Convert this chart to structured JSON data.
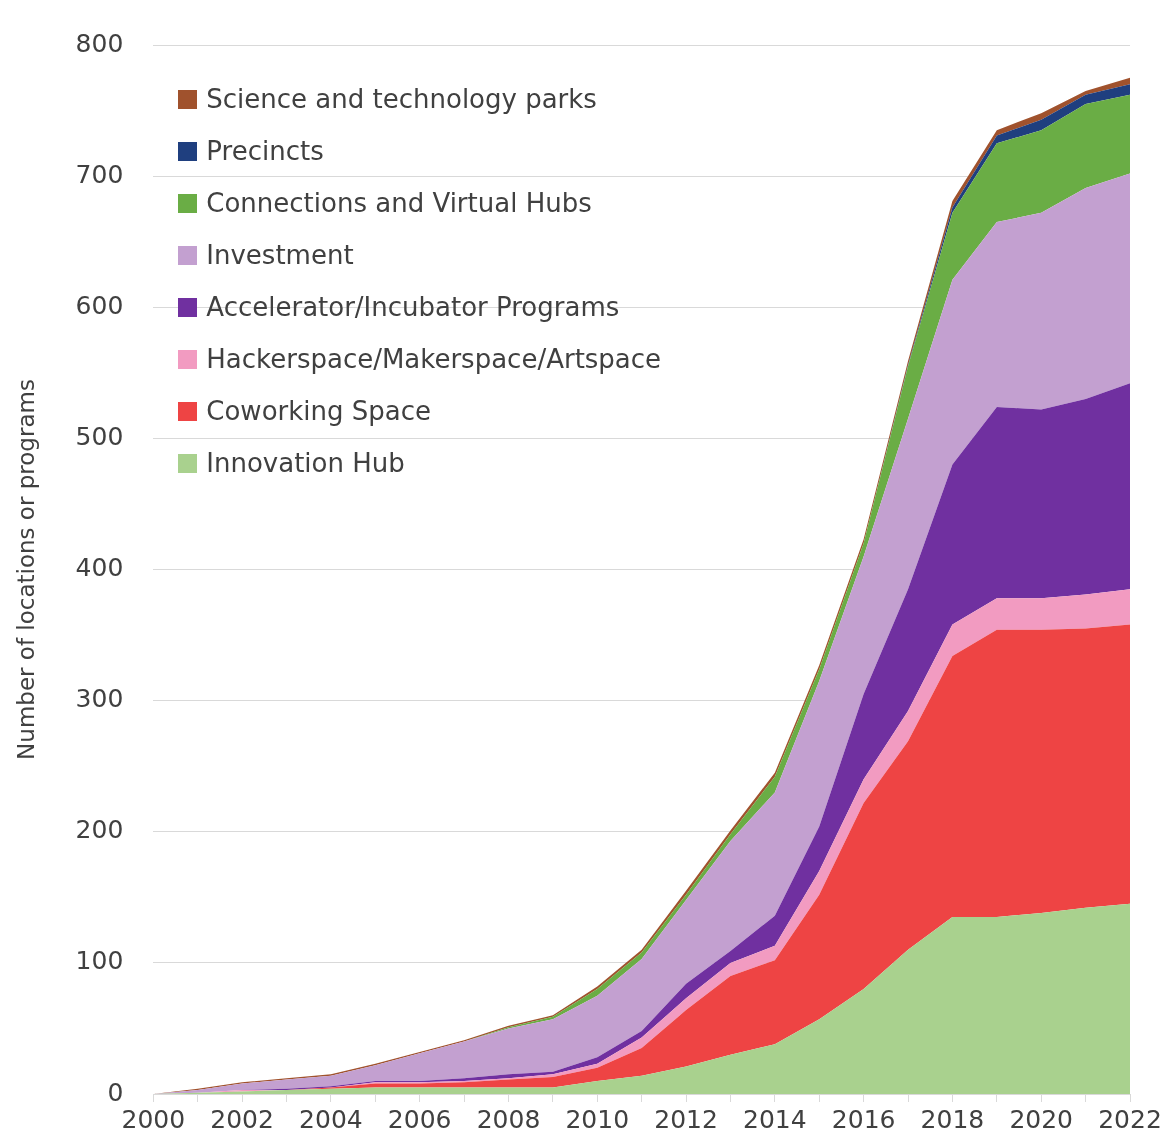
{
  "chart_data": {
    "type": "area",
    "stacked": true,
    "ylabel": "Number of locations or programs",
    "x": [
      2000,
      2001,
      2002,
      2003,
      2004,
      2005,
      2006,
      2007,
      2008,
      2009,
      2010,
      2011,
      2012,
      2013,
      2014,
      2015,
      2016,
      2017,
      2018,
      2019,
      2020,
      2021,
      2022
    ],
    "xlim": [
      2000,
      2022
    ],
    "xticks": [
      2000,
      {
        "value": 2001,
        "label": null
      },
      2002,
      {
        "value": 2003,
        "label": null
      },
      2004,
      {
        "value": 2005,
        "label": null
      },
      2006,
      {
        "value": 2007,
        "label": null
      },
      2008,
      {
        "value": 2009,
        "label": null
      },
      2010,
      {
        "value": 2011,
        "label": null
      },
      2012,
      {
        "value": 2013,
        "label": null
      },
      2014,
      {
        "value": 2015,
        "label": null
      },
      2016,
      {
        "value": 2017,
        "label": null
      },
      2018,
      {
        "value": 2019,
        "label": null
      },
      2020,
      {
        "value": 2021,
        "label": null
      },
      2022
    ],
    "ylim": [
      0,
      800
    ],
    "yticks": [
      0,
      100,
      200,
      300,
      400,
      500,
      600,
      700,
      800
    ],
    "grid": "y",
    "legend": "top left",
    "series": [
      {
        "name": "Innovation Hub",
        "color": "#a9d18e",
        "values": [
          0,
          1,
          2,
          3,
          4,
          5,
          5,
          5,
          5,
          5,
          10,
          14,
          21,
          30,
          38,
          57,
          80,
          110,
          135,
          135,
          138,
          142,
          145
        ]
      },
      {
        "name": "Coworking Space",
        "color": "#ee4444",
        "values": [
          0,
          0,
          0,
          0,
          1,
          3,
          3,
          4,
          6,
          8,
          10,
          21,
          43,
          60,
          64,
          95,
          142,
          159,
          199,
          219,
          216,
          213,
          213
        ]
      },
      {
        "name": "Hackerspace/Makerspace/Artspace",
        "color": "#f29bc1",
        "values": [
          0,
          0,
          1,
          0,
          0,
          1,
          1,
          1,
          1,
          2,
          3,
          8,
          9,
          10,
          11,
          18,
          18,
          23,
          24,
          24,
          24,
          26,
          27
        ]
      },
      {
        "name": "Accelerator/Incubator Programs",
        "color": "#7030a0",
        "values": [
          0,
          0,
          0,
          1,
          1,
          1,
          1,
          2,
          3,
          2,
          5,
          5,
          11,
          9,
          23,
          34,
          65,
          93,
          122,
          146,
          144,
          149,
          157
        ]
      },
      {
        "name": "Investment",
        "color": "#c3a0d0",
        "values": [
          0,
          2,
          5,
          7,
          8,
          12,
          21,
          28,
          35,
          40,
          47,
          55,
          64,
          84,
          94,
          111,
          105,
          130,
          141,
          141,
          150,
          161,
          160
        ]
      },
      {
        "name": "Connections and Virtual Hubs",
        "color": "#6aad45",
        "values": [
          0,
          0,
          0,
          0,
          0,
          0,
          0,
          0,
          1,
          2,
          5,
          5,
          4,
          5,
          12,
          9,
          10,
          40,
          51,
          60,
          63,
          64,
          60
        ]
      },
      {
        "name": "Precincts",
        "color": "#1f3f7f",
        "values": [
          0,
          0,
          0,
          0,
          0,
          0,
          0,
          0,
          0,
          0,
          0,
          0,
          0,
          0,
          0,
          0,
          0,
          1,
          4,
          6,
          8,
          7,
          8
        ]
      },
      {
        "name": "Science and technology parks",
        "color": "#a0522d",
        "values": [
          0,
          1,
          1,
          1,
          1,
          1,
          1,
          1,
          1,
          1,
          2,
          2,
          3,
          3,
          3,
          3,
          3,
          3,
          5,
          4,
          5,
          3,
          5
        ]
      }
    ]
  }
}
